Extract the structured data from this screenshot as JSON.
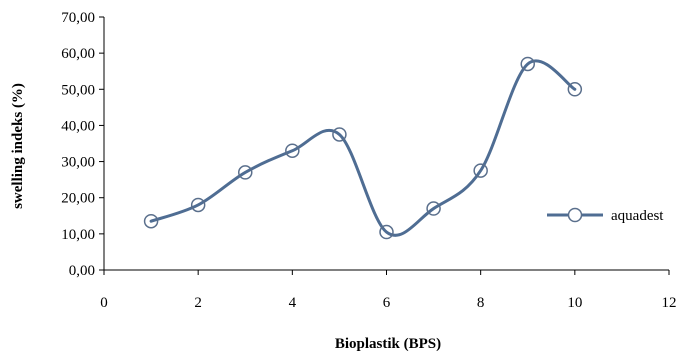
{
  "chart_data": {
    "type": "line",
    "title": "",
    "xlabel": "Bioplastik (BPS)",
    "ylabel": "swelling indeks (%)",
    "xlim": [
      0,
      12
    ],
    "ylim": [
      0,
      70
    ],
    "x_ticks": [
      0,
      2,
      4,
      6,
      8,
      10,
      12
    ],
    "y_ticks": [
      0,
      10,
      20,
      30,
      40,
      50,
      60,
      70
    ],
    "x_tick_labels": [
      "0",
      "2",
      "4",
      "6",
      "8",
      "10",
      "12"
    ],
    "y_tick_labels": [
      "0,00",
      "10,00",
      "20,00",
      "30,00",
      "40,00",
      "50,00",
      "60,00",
      "70,00"
    ],
    "grid": false,
    "legend_position": "right",
    "series": [
      {
        "name": "aquadest",
        "color": "#4F6D93",
        "marker": "open-circle",
        "smooth": true,
        "x": [
          1,
          2,
          3,
          4,
          5,
          6,
          7,
          8,
          9,
          10
        ],
        "y": [
          13.5,
          18.0,
          27.0,
          33.0,
          37.5,
          10.5,
          17.0,
          27.5,
          57.0,
          50.0
        ]
      }
    ]
  }
}
